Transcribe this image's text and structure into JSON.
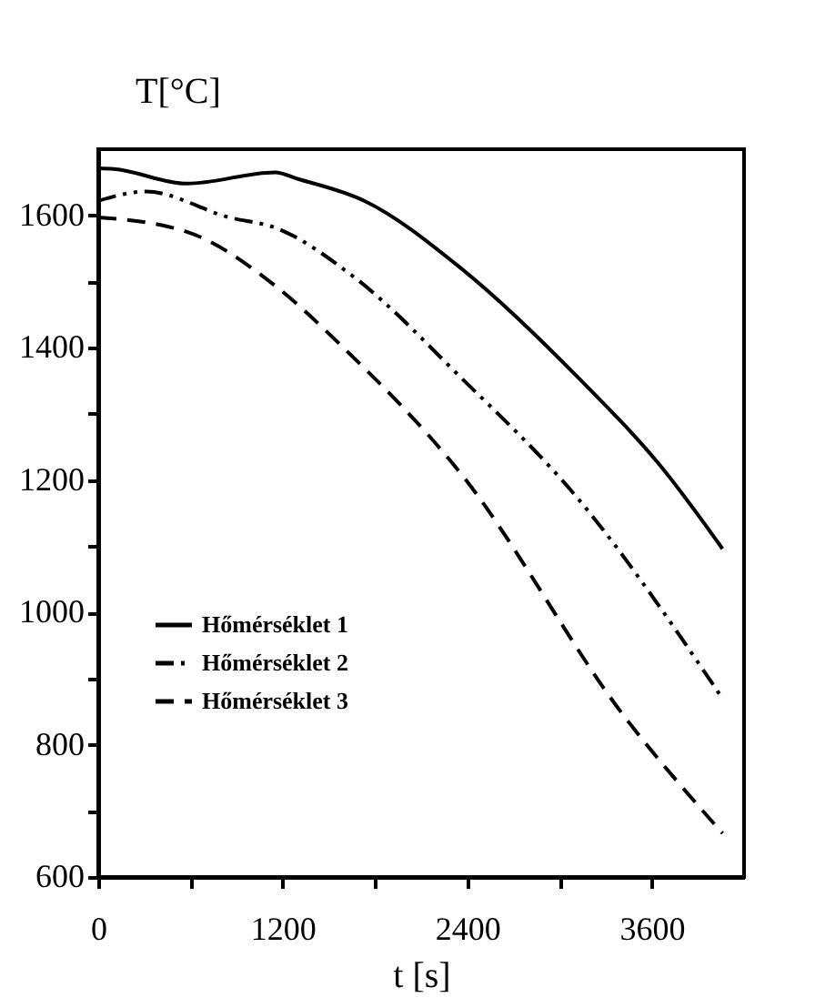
{
  "chart_data": {
    "type": "line",
    "xlabel": "t [s]",
    "ylabel": "T[°C]",
    "xlim": [
      0,
      4200
    ],
    "ylim": [
      600,
      1700
    ],
    "xticks": [
      0,
      {
        "value": 600,
        "label": null
      },
      1200,
      {
        "value": 1800,
        "label": null
      },
      2400,
      {
        "value": 3000,
        "label": null
      },
      3600
    ],
    "yticks": [
      600,
      {
        "value": 700,
        "label": null
      },
      800,
      {
        "value": 900,
        "label": null
      },
      1000,
      {
        "value": 1100,
        "label": null
      },
      1200,
      {
        "value": 1300,
        "label": null
      },
      1400,
      {
        "value": 1500,
        "label": null
      },
      1600
    ],
    "grid": false,
    "legend": "bottom left",
    "marker": "none",
    "series": [
      {
        "name": "Hőmérséklet 1",
        "color": "#000000",
        "line_style": "solid",
        "x": [
          0,
          100,
          577,
          1150,
          1300,
          1730,
          2354,
          3116,
          3693,
          4060
        ],
        "values": [
          1671,
          1670,
          1648,
          1665,
          1655,
          1622,
          1521,
          1356,
          1211,
          1096
        ]
      },
      {
        "name": "Hőmérséklet 2",
        "color": "#000000",
        "line_style": "dashdotdot",
        "x": [
          0,
          310,
          850,
          1154,
          1662,
          2354,
          3116,
          4039
        ],
        "values": [
          1622,
          1636,
          1597,
          1581,
          1507,
          1356,
          1173,
          877
        ]
      },
      {
        "name": "Hőmérséklet 3",
        "color": "#000000",
        "line_style": "dashed",
        "x": [
          0,
          577,
          1154,
          1581,
          2354,
          3427,
          4060
        ],
        "values": [
          1597,
          1575,
          1493,
          1403,
          1211,
          841,
          666
        ]
      }
    ]
  }
}
